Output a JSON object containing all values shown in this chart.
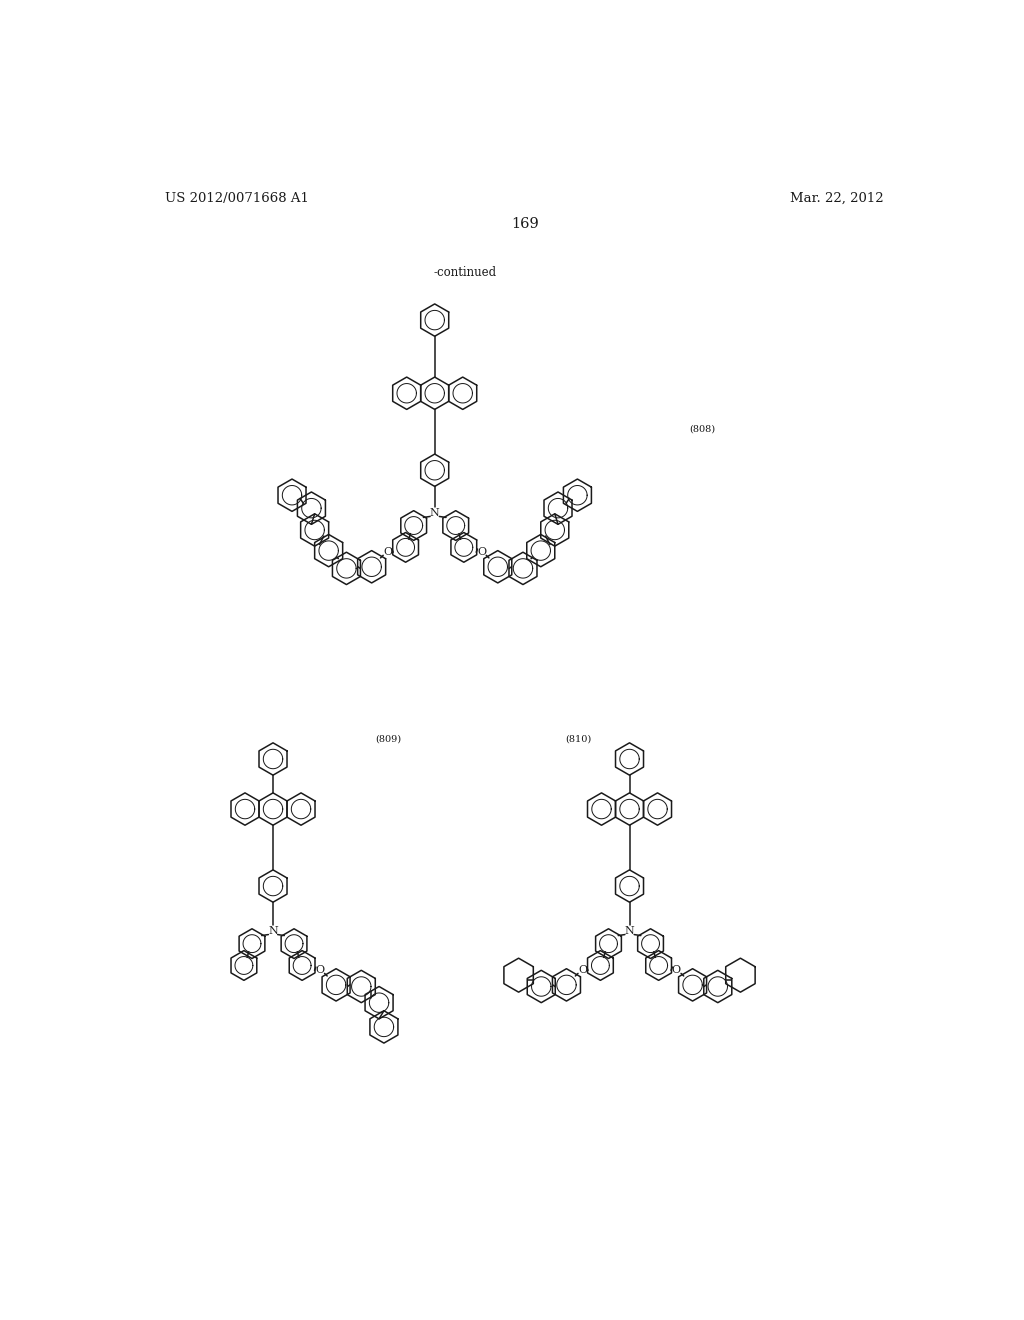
{
  "page_number": "169",
  "patent_number": "US 2012/0071668 A1",
  "patent_date": "Mar. 22, 2012",
  "continued_text": "-continued",
  "compound_808": "(808)",
  "compound_809": "(809)",
  "compound_810": "(810)",
  "background_color": "#ffffff",
  "line_color": "#1a1a1a",
  "line_width": 1.1,
  "font_size_header": 9.5,
  "font_size_page": 10.5
}
